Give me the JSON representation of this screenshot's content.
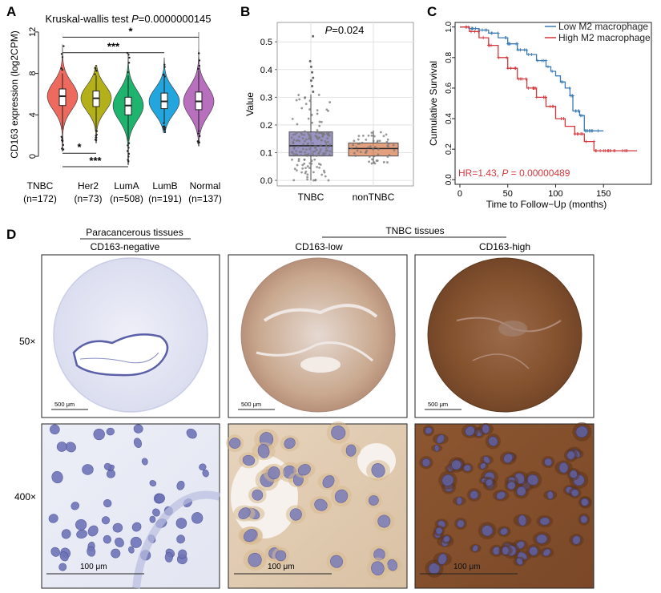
{
  "panel_labels": {
    "a": "A",
    "b": "B",
    "c": "C",
    "d": "D"
  },
  "panel_a": {
    "title_prefix": "Kruskal-wallis test ",
    "title_p_label": "P",
    "title_p_value": "=0.0000000145",
    "ylabel": "CD163 expression (log2CPM)",
    "sig_marks": [
      "*",
      "***",
      "*",
      "***"
    ]
  },
  "panel_b": {
    "ylabel": "Value",
    "p_label": "P",
    "p_value": "=0.024"
  },
  "panel_c": {
    "hr_label": "HR=1.43, ",
    "hr_p_label": "P",
    "hr_p_value": " = 0.00000489"
  },
  "panel_d": {
    "group_left": "Paracancerous tissues",
    "group_right": "TNBC tissues",
    "cols": [
      "CD163-negative",
      "CD163-low",
      "CD163-high"
    ],
    "rows": [
      "50×",
      "400×"
    ],
    "scale_low": "500 μm",
    "scale_high": "100 μm"
  },
  "chart_data": [
    {
      "type": "violin",
      "title": "Kruskal-wallis test P=0.0000000145",
      "ylabel": "CD163 expression (log2CPM)",
      "categories": [
        "TNBC\n(n=172)",
        "Her2\n(n=73)",
        "LumA\n(n=508)",
        "LumB\n(n=191)",
        "Normal\n(n=137)"
      ],
      "category_names": [
        "TNBC",
        "Her2",
        "LumA",
        "LumB",
        "Normal"
      ],
      "category_counts": [
        "(n=172)",
        "(n=73)",
        "(n=508)",
        "(n=191)",
        "(n=137)"
      ],
      "colors": [
        "#ee6a5e",
        "#b4b01a",
        "#1eb36e",
        "#22a6dd",
        "#b76fbe"
      ],
      "median": [
        5.8,
        5.6,
        4.9,
        5.3,
        5.3
      ],
      "q1": [
        4.9,
        4.8,
        4.0,
        4.6,
        4.5
      ],
      "q3": [
        6.5,
        6.3,
        5.7,
        6.1,
        6.2
      ],
      "whisker_low": [
        2.6,
        2.6,
        1.5,
        3.2,
        2.5
      ],
      "whisker_high": [
        8.0,
        7.8,
        7.8,
        7.7,
        8.3
      ],
      "min": [
        0.5,
        1.3,
        -0.8,
        2.3,
        1.0
      ],
      "max": [
        10.8,
        8.8,
        10.0,
        9.5,
        12.0
      ],
      "yticks": [
        0,
        4,
        8,
        12
      ],
      "ylim": [
        -1,
        12.3
      ],
      "comparisons": [
        {
          "from": "TNBC",
          "to": "Normal",
          "label": "*",
          "y": 11.5
        },
        {
          "from": "TNBC",
          "to": "LumB",
          "label": "***",
          "y": 10.0
        },
        {
          "from": "TNBC",
          "to": "Her2",
          "label": "*",
          "y": 0.3
        },
        {
          "from": "TNBC",
          "to": "LumA",
          "label": "***",
          "y": -1.0
        }
      ]
    },
    {
      "type": "box",
      "ylabel": "Value",
      "categories": [
        "TNBC",
        "nonTNBC"
      ],
      "colors": [
        "#8a83bb",
        "#e0916a"
      ],
      "median": [
        0.125,
        0.115
      ],
      "q1": [
        0.088,
        0.088
      ],
      "q3": [
        0.175,
        0.135
      ],
      "whisker_low": [
        0.0,
        0.06
      ],
      "whisker_high": [
        0.31,
        0.18
      ],
      "outliers_high": [
        [
          0.32,
          0.34,
          0.36,
          0.37,
          0.39,
          0.41,
          0.43,
          0.52
        ],
        []
      ],
      "yticks": [
        0.0,
        0.1,
        0.2,
        0.3,
        0.4,
        0.5
      ],
      "ylim": [
        -0.02,
        0.57
      ]
    },
    {
      "type": "line",
      "xlabel": "Time to Follow−Up (months)",
      "ylabel": "Cumulative Survival",
      "xticks": [
        0,
        50,
        100,
        150
      ],
      "yticks": [
        0.0,
        0.2,
        0.4,
        0.6,
        0.8,
        1.0
      ],
      "xlim": [
        -5,
        200
      ],
      "ylim": [
        -0.03,
        1.03
      ],
      "legend_position": "top-right",
      "series": [
        {
          "name": "Low M2 macrophage",
          "color": "#3a7bb5",
          "x": [
            0,
            10,
            20,
            30,
            40,
            50,
            60,
            70,
            80,
            90,
            95,
            100,
            105,
            110,
            115,
            118,
            125,
            130,
            140,
            150
          ],
          "y": [
            1.0,
            0.99,
            0.98,
            0.96,
            0.93,
            0.89,
            0.85,
            0.82,
            0.78,
            0.74,
            0.71,
            0.68,
            0.64,
            0.6,
            0.55,
            0.45,
            0.42,
            0.32,
            0.32,
            0.32
          ]
        },
        {
          "name": "High M2 macrophage",
          "color": "#d4373b",
          "x": [
            0,
            10,
            20,
            30,
            40,
            50,
            60,
            70,
            80,
            90,
            100,
            110,
            120,
            130,
            140,
            150,
            160,
            170,
            185
          ],
          "y": [
            1.0,
            0.97,
            0.93,
            0.88,
            0.8,
            0.73,
            0.66,
            0.6,
            0.54,
            0.48,
            0.4,
            0.35,
            0.3,
            0.25,
            0.19,
            0.19,
            0.19,
            0.19,
            0.19
          ]
        }
      ]
    }
  ]
}
